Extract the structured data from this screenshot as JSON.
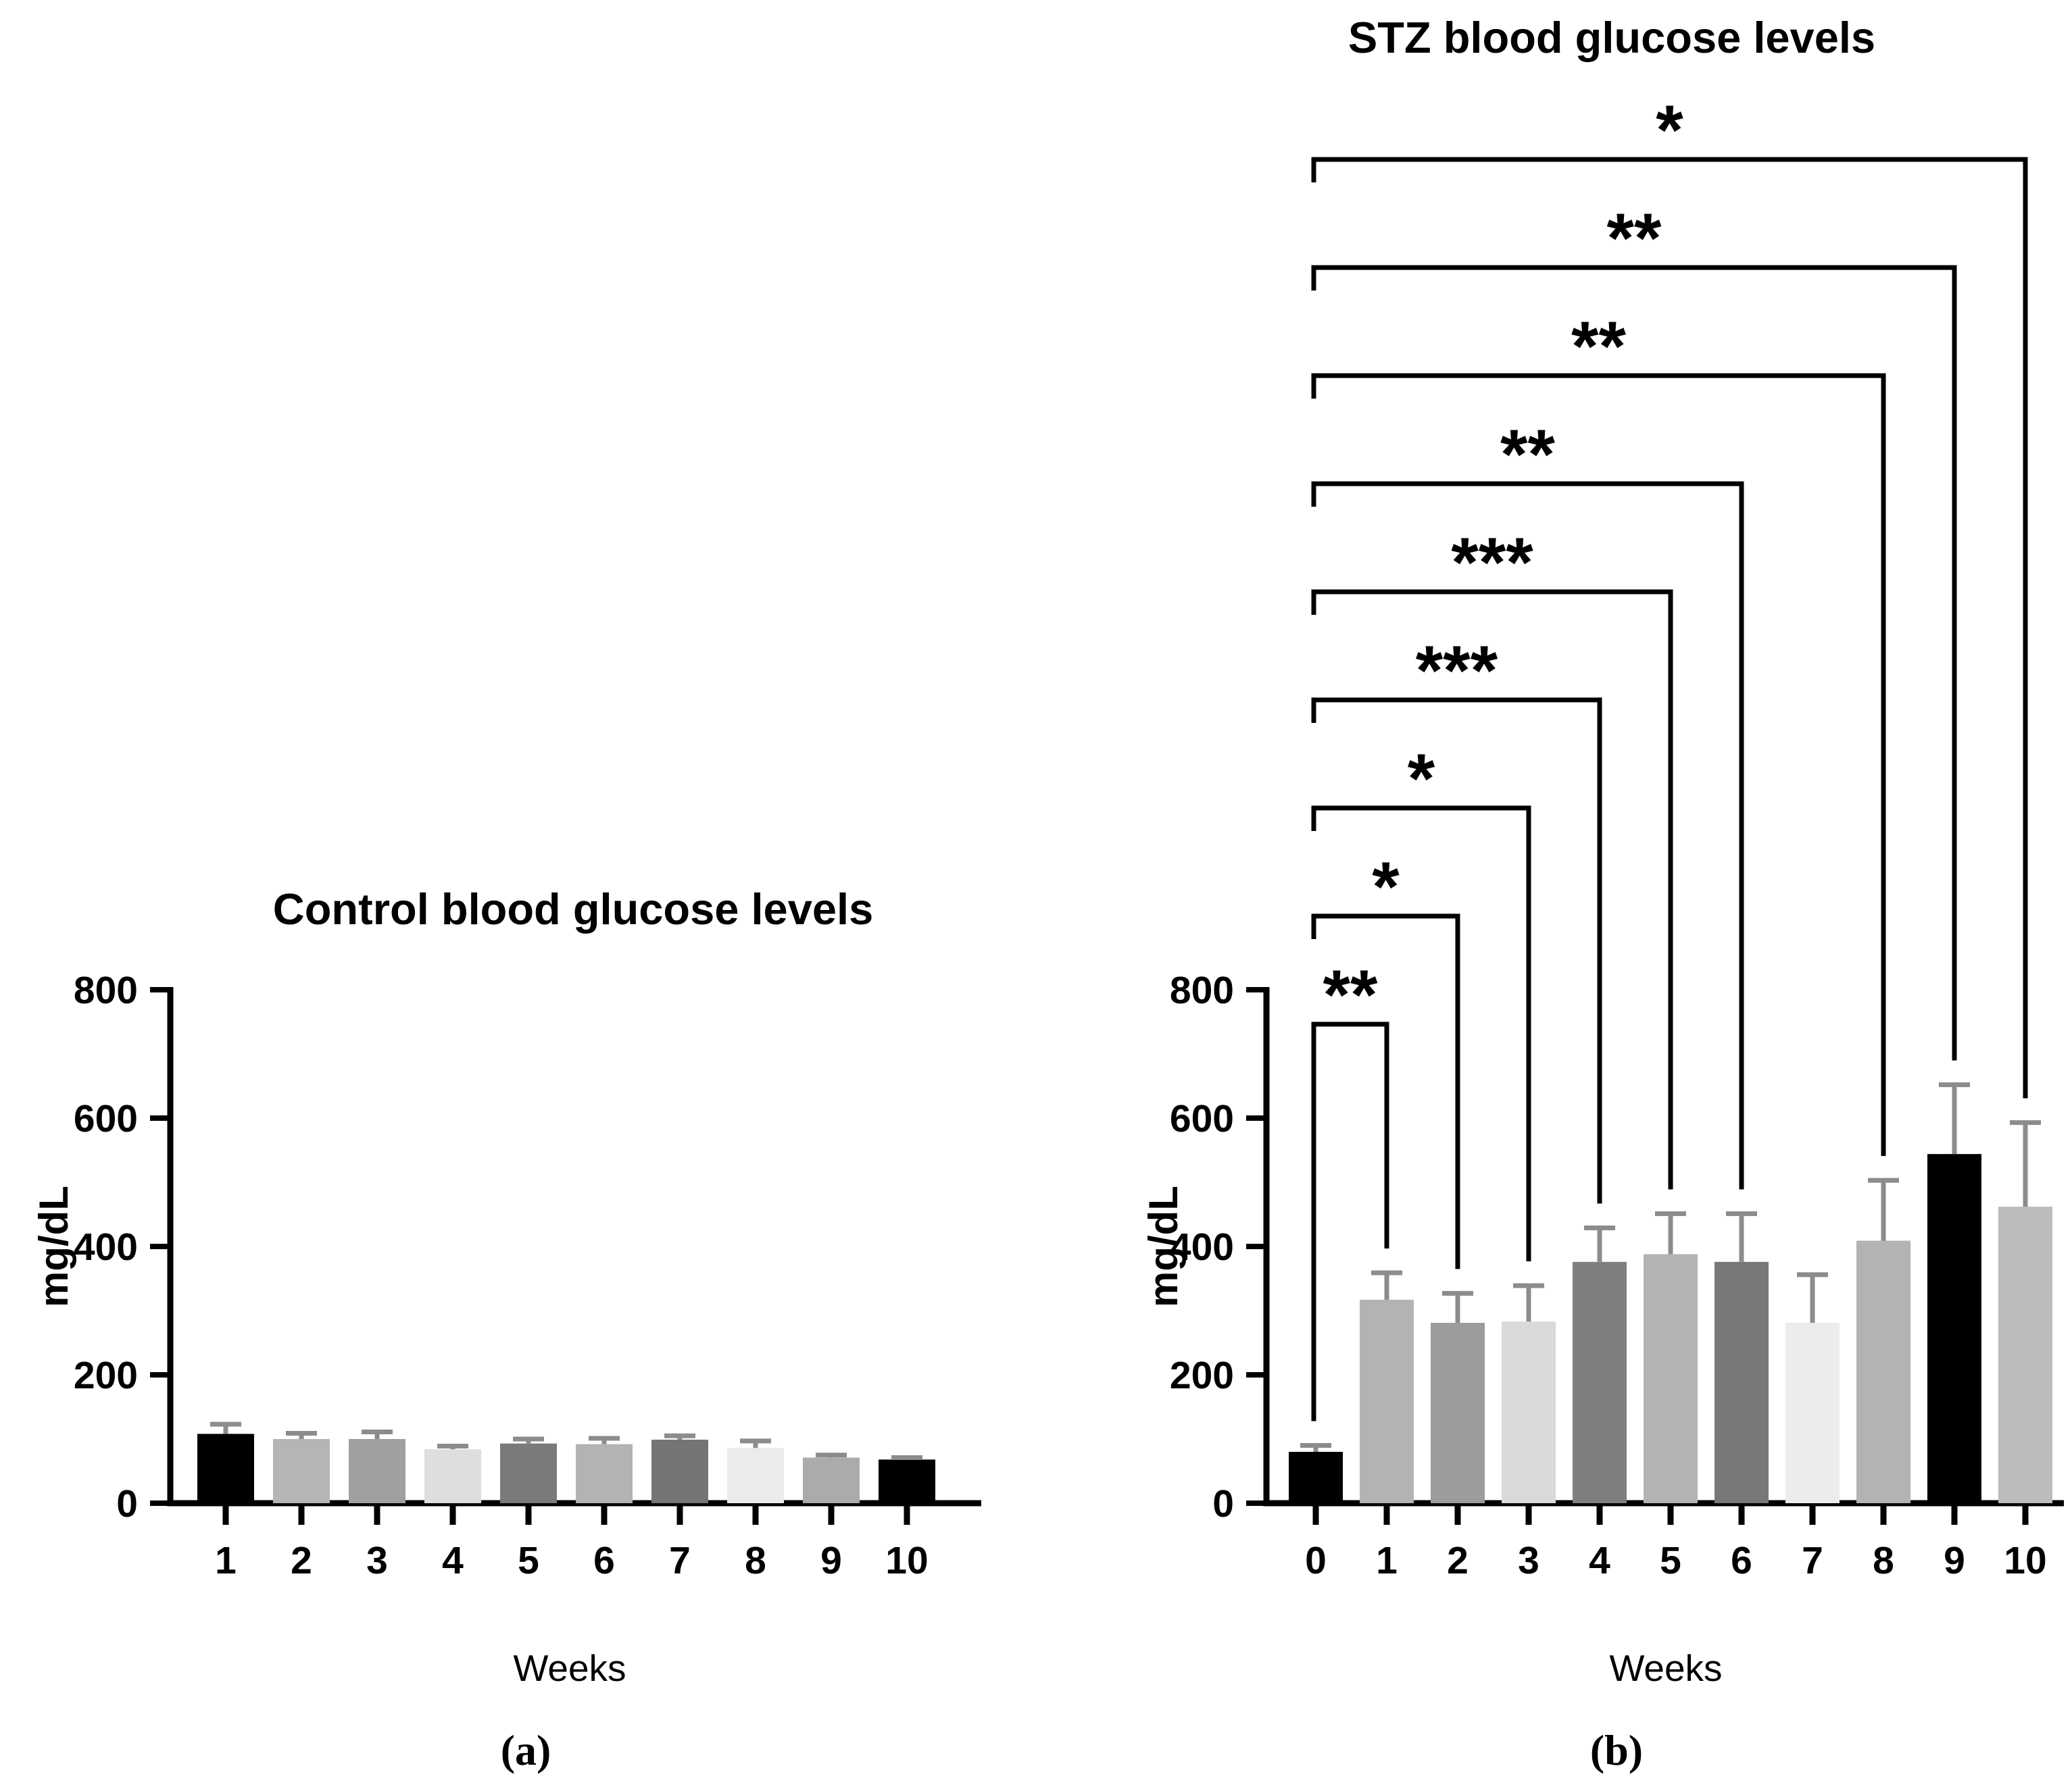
{
  "figure": {
    "background_color": "#ffffff",
    "axis_color": "#000000",
    "bracket_color": "#000000"
  },
  "chart_data": [
    {
      "type": "bar",
      "panel": "a",
      "title": "Control blood glucose levels",
      "xlabel": "Weeks",
      "ylabel": "mg/dL",
      "caption": "(a)",
      "ylim": [
        0,
        800
      ],
      "yticks": [
        0,
        200,
        400,
        600,
        800
      ],
      "grid": false,
      "legend": false,
      "categories": [
        "1",
        "2",
        "3",
        "4",
        "5",
        "6",
        "7",
        "8",
        "9",
        "10"
      ],
      "values": [
        108,
        100,
        100,
        84,
        93,
        92,
        99,
        86,
        71,
        68
      ],
      "errors_plus": [
        15,
        9,
        11,
        5,
        7,
        9,
        6,
        11,
        4,
        3
      ],
      "bar_colors": [
        "#000000",
        "#b5b5b5",
        "#a0a0a0",
        "#dedede",
        "#7a7a7a",
        "#b3b3b3",
        "#757575",
        "#ebebeb",
        "#ababab",
        "#000000"
      ],
      "error_bar_color": "#8c8c8c"
    },
    {
      "type": "bar",
      "panel": "b",
      "title": "STZ blood glucose levels",
      "xlabel": "Weeks",
      "ylabel": "mg/dL",
      "caption": "(b)",
      "ylim": [
        0,
        800
      ],
      "yticks": [
        0,
        200,
        400,
        600,
        800
      ],
      "grid": false,
      "legend": false,
      "categories": [
        "0",
        "1",
        "2",
        "3",
        "4",
        "5",
        "6",
        "7",
        "8",
        "9",
        "10"
      ],
      "values": [
        80,
        317,
        281,
        283,
        376,
        388,
        376,
        281,
        409,
        544,
        462
      ],
      "errors_plus": [
        10,
        42,
        46,
        56,
        53,
        63,
        75,
        75,
        94,
        108,
        131
      ],
      "bar_colors": [
        "#000000",
        "#b3b3b3",
        "#9c9c9c",
        "#d9d9d9",
        "#7f7f7f",
        "#b3b3b3",
        "#787878",
        "#ececec",
        "#b3b3b3",
        "#000000",
        "#bcbcbc"
      ],
      "error_bar_color": "#8c8c8c",
      "significance_brackets": [
        {
          "from": "0",
          "to": "10",
          "label": "*"
        },
        {
          "from": "0",
          "to": "9",
          "label": "**"
        },
        {
          "from": "0",
          "to": "8",
          "label": "**"
        },
        {
          "from": "0",
          "to": "6",
          "label": "**"
        },
        {
          "from": "0",
          "to": "5",
          "label": "***"
        },
        {
          "from": "0",
          "to": "4",
          "label": "***"
        },
        {
          "from": "0",
          "to": "3",
          "label": "*"
        },
        {
          "from": "0",
          "to": "2",
          "label": "*"
        },
        {
          "from": "0",
          "to": "1",
          "label": "**"
        }
      ]
    }
  ]
}
